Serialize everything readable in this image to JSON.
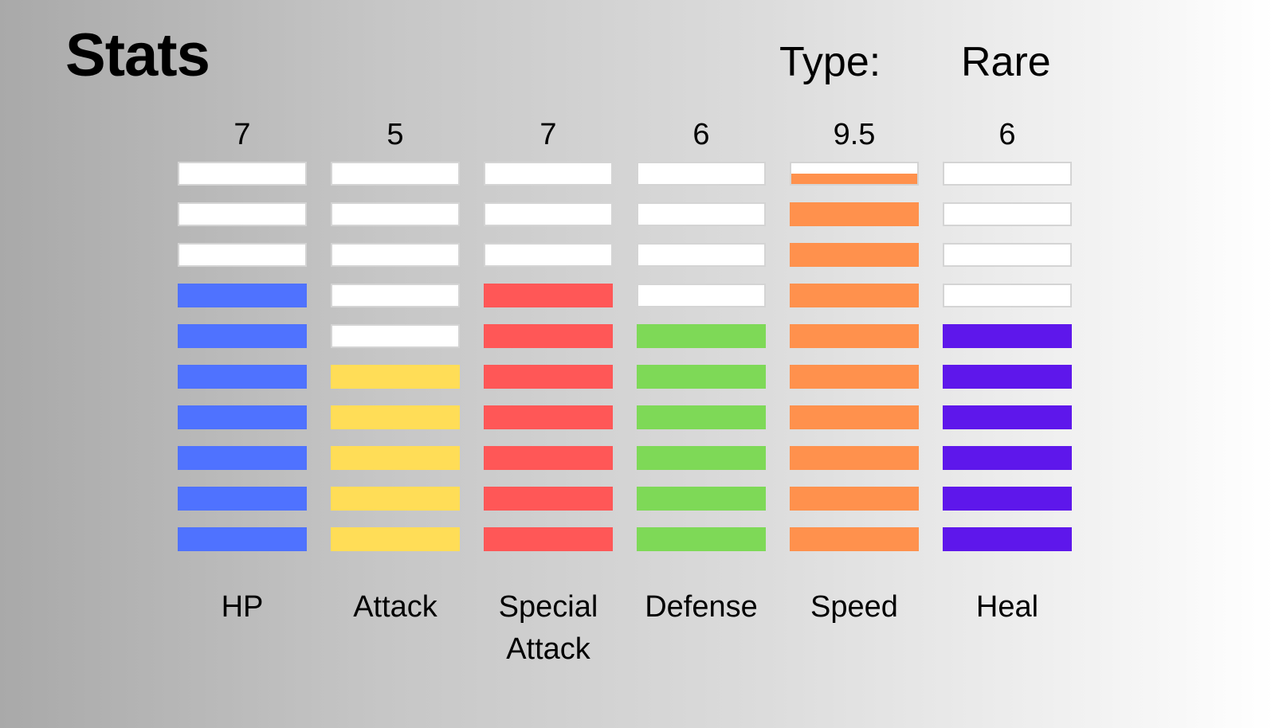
{
  "header": {
    "title": "Stats",
    "type_label": "Type:",
    "type_value": "Rare"
  },
  "bar_segments_per_stat": 10,
  "stats": [
    {
      "label": "HP",
      "value_text": "7",
      "value": 7,
      "color": "#4f72ff"
    },
    {
      "label": "Attack",
      "value_text": "5",
      "value": 5,
      "color": "#ffdd57"
    },
    {
      "label": "Special\nAttack",
      "value_text": "7",
      "value": 7,
      "color": "#ff5757"
    },
    {
      "label": "Defense",
      "value_text": "6",
      "value": 6,
      "color": "#7ed957"
    },
    {
      "label": "Speed",
      "value_text": "9.5",
      "value": 9.5,
      "color": "#ff914d"
    },
    {
      "label": "Heal",
      "value_text": "6",
      "value": 6,
      "color": "#5e17eb"
    }
  ]
}
